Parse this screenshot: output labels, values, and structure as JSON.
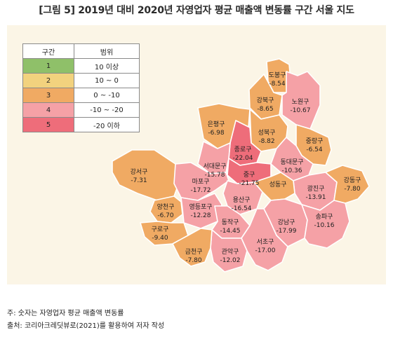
{
  "title": "[그림 5] 2019년 대비 2020년 자영업자 평균 매출액 변동률 구간 서울 지도",
  "legend": {
    "headers": [
      "구간",
      "범위"
    ],
    "rows": [
      {
        "class": "1",
        "range": "10 이상",
        "color": "#8fc069"
      },
      {
        "class": "2",
        "range": "10 ~ 0",
        "color": "#f2d27e"
      },
      {
        "class": "3",
        "range": "0 ~ -10",
        "color": "#f0aa63"
      },
      {
        "class": "4",
        "range": "-10 ~ -20",
        "color": "#f5a1a6"
      },
      {
        "class": "5",
        "range": "-20 이하",
        "color": "#ee6d7a"
      }
    ]
  },
  "districts": [
    {
      "id": "dobong",
      "name": "도봉구",
      "value": "-8.54",
      "class": 3
    },
    {
      "id": "gangbuk",
      "name": "강북구",
      "value": "-8.65",
      "class": 3
    },
    {
      "id": "nowon",
      "name": "노원구",
      "value": "-10.67",
      "class": 4
    },
    {
      "id": "eunpyeong",
      "name": "은평구",
      "value": "-6.98",
      "class": 3
    },
    {
      "id": "seongbuk",
      "name": "성북구",
      "value": "-8.82",
      "class": 3
    },
    {
      "id": "jungnang",
      "name": "중랑구",
      "value": "-6.54",
      "class": 3
    },
    {
      "id": "jongno",
      "name": "종로구",
      "value": "-22.04",
      "class": 5
    },
    {
      "id": "dongdaemun",
      "name": "동대문구",
      "value": "-10.36",
      "class": 4
    },
    {
      "id": "seodaemun",
      "name": "서대문구",
      "value": "-15.78",
      "class": 4
    },
    {
      "id": "junggu",
      "name": "중구",
      "value": "-21.75",
      "class": 5
    },
    {
      "id": "gangseo",
      "name": "강서구",
      "value": "-7.31",
      "class": 3
    },
    {
      "id": "mapo",
      "name": "마포구",
      "value": "-17.72",
      "class": 4
    },
    {
      "id": "gwangjin",
      "name": "광진구",
      "value": "-13.91",
      "class": 4
    },
    {
      "id": "gangdong",
      "name": "강동구",
      "value": "-7.80",
      "class": 3
    },
    {
      "id": "yongsan",
      "name": "용산구",
      "value": "-16.54",
      "class": 4
    },
    {
      "id": "seongdong",
      "name": "성동구",
      "value": "",
      "class": 3
    },
    {
      "id": "yangcheon",
      "name": "양천구",
      "value": "-6.70",
      "class": 3
    },
    {
      "id": "yeongdeungpo",
      "name": "영등포구",
      "value": "-12.28",
      "class": 4
    },
    {
      "id": "dongjak",
      "name": "동작구",
      "value": "-14.45",
      "class": 4
    },
    {
      "id": "gangnam",
      "name": "강남구",
      "value": "-17.99",
      "class": 4
    },
    {
      "id": "songpa",
      "name": "송파구",
      "value": "-10.16",
      "class": 4
    },
    {
      "id": "guro",
      "name": "구로구",
      "value": "-9.40",
      "class": 3
    },
    {
      "id": "seocho",
      "name": "서초구",
      "value": "-17.00",
      "class": 4
    },
    {
      "id": "gwanak",
      "name": "관악구",
      "value": "-12.02",
      "class": 4
    },
    {
      "id": "geumcheon",
      "name": "금천구",
      "value": "-7.80",
      "class": 3
    }
  ],
  "notes": [
    "주: 숫자는 자영업자 평균 매출액 변동률",
    "출처: 코리아크레딧뷰로(2021)를 활용하여 저자 작성"
  ]
}
